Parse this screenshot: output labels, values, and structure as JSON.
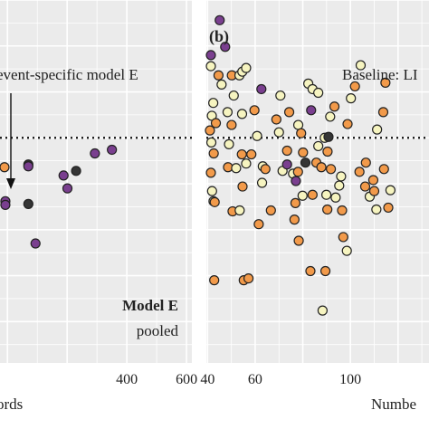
{
  "chart_data": [
    {
      "type": "scatter",
      "panel_label": "",
      "annotation": "event-specific model E",
      "model_label": "Model E",
      "pooled_label": "pooled",
      "xlabel": "ords",
      "xlim": [
        -25,
        618
      ],
      "x_ticks": [
        400,
        600
      ],
      "ylim": [
        -2.45,
        1.5
      ],
      "reference_line_y": 0,
      "grid": true,
      "colors": {
        "purple": "#7a3f8f",
        "dark": "#353535",
        "orange": "#f29a4a"
      },
      "points": [
        {
          "x": -10,
          "y": -0.32,
          "color": "orange"
        },
        {
          "x": -7,
          "y": -0.69,
          "color": "purple"
        },
        {
          "x": -7,
          "y": -0.73,
          "color": "purple"
        },
        {
          "x": 70,
          "y": -0.29,
          "color": "dark"
        },
        {
          "x": 70,
          "y": -0.31,
          "color": "purple"
        },
        {
          "x": 70,
          "y": -0.72,
          "color": "dark"
        },
        {
          "x": 94,
          "y": -1.15,
          "color": "purple"
        },
        {
          "x": 188,
          "y": -0.41,
          "color": "purple"
        },
        {
          "x": 201,
          "y": -0.55,
          "color": "purple"
        },
        {
          "x": 230,
          "y": -0.36,
          "color": "dark"
        },
        {
          "x": 293,
          "y": -0.17,
          "color": "purple"
        },
        {
          "x": 350,
          "y": -0.13,
          "color": "purple"
        }
      ]
    },
    {
      "type": "scatter",
      "panel_label": "(b)",
      "annotation": "Baseline: LI",
      "xlabel": "Numbe",
      "xlim": [
        39.5,
        133
      ],
      "x_ticks": [
        40,
        60,
        100
      ],
      "ylim": [
        -2.45,
        1.5
      ],
      "reference_line_y": 0,
      "grid": true,
      "colors": {
        "purple": "#7a3f8f",
        "dark": "#353535",
        "orange": "#f29a4a",
        "yellow": "#f6f4c0"
      },
      "points": [
        {
          "x": 41.4,
          "y": 0.9,
          "color": "purple"
        },
        {
          "x": 41.4,
          "y": 0.78,
          "color": "yellow"
        },
        {
          "x": 42.4,
          "y": 0.38,
          "color": "yellow"
        },
        {
          "x": 41.8,
          "y": 0.24,
          "color": "yellow"
        },
        {
          "x": 41,
          "y": 0.08,
          "color": "orange"
        },
        {
          "x": 41.6,
          "y": -0.05,
          "color": "yellow"
        },
        {
          "x": 42.6,
          "y": -0.17,
          "color": "orange"
        },
        {
          "x": 41.4,
          "y": -0.38,
          "color": "orange"
        },
        {
          "x": 41.9,
          "y": -0.58,
          "color": "yellow"
        },
        {
          "x": 42.5,
          "y": -0.69,
          "color": "yellow"
        },
        {
          "x": 43,
          "y": -0.7,
          "color": "orange"
        },
        {
          "x": 42.8,
          "y": -1.55,
          "color": "orange"
        },
        {
          "x": 43.5,
          "y": 0.16,
          "color": "orange"
        },
        {
          "x": 45.1,
          "y": 1.28,
          "color": "purple"
        },
        {
          "x": 45.9,
          "y": 0.58,
          "color": "yellow"
        },
        {
          "x": 47.4,
          "y": 0.99,
          "color": "purple"
        },
        {
          "x": 44.6,
          "y": 0.68,
          "color": "orange"
        },
        {
          "x": 48.6,
          "y": -0.32,
          "color": "orange"
        },
        {
          "x": 49,
          "y": -0.07,
          "color": "yellow"
        },
        {
          "x": 48.4,
          "y": 0.28,
          "color": "yellow"
        },
        {
          "x": 51,
          "y": 0.46,
          "color": "yellow"
        },
        {
          "x": 52,
          "y": -0.33,
          "color": "yellow"
        },
        {
          "x": 50.5,
          "y": -0.8,
          "color": "orange"
        },
        {
          "x": 50.1,
          "y": 0.14,
          "color": "orange"
        },
        {
          "x": 50.2,
          "y": 0.68,
          "color": "orange"
        },
        {
          "x": 53.4,
          "y": 0.68,
          "color": "yellow"
        },
        {
          "x": 54.6,
          "y": 0.72,
          "color": "yellow"
        },
        {
          "x": 56.2,
          "y": 0.76,
          "color": "yellow"
        },
        {
          "x": 54.5,
          "y": 0.26,
          "color": "yellow"
        },
        {
          "x": 54.4,
          "y": -0.18,
          "color": "orange"
        },
        {
          "x": 56.2,
          "y": -0.28,
          "color": "yellow"
        },
        {
          "x": 54.7,
          "y": -0.53,
          "color": "orange"
        },
        {
          "x": 53.5,
          "y": -0.79,
          "color": "yellow"
        },
        {
          "x": 55.2,
          "y": -1.55,
          "color": "orange"
        },
        {
          "x": 57.2,
          "y": -1.53,
          "color": "orange"
        },
        {
          "x": 58.4,
          "y": -0.18,
          "color": "orange"
        },
        {
          "x": 59.7,
          "y": 0.3,
          "color": "orange"
        },
        {
          "x": 60.8,
          "y": 0.02,
          "color": "yellow"
        },
        {
          "x": 62.6,
          "y": 0.53,
          "color": "purple"
        },
        {
          "x": 63.2,
          "y": -0.31,
          "color": "yellow"
        },
        {
          "x": 62.9,
          "y": -0.49,
          "color": "yellow"
        },
        {
          "x": 61.5,
          "y": -0.94,
          "color": "orange"
        },
        {
          "x": 64.3,
          "y": -0.34,
          "color": "orange"
        },
        {
          "x": 66.6,
          "y": -0.79,
          "color": "orange"
        },
        {
          "x": 68.9,
          "y": 0.2,
          "color": "orange"
        },
        {
          "x": 70,
          "y": 0.06,
          "color": "yellow"
        },
        {
          "x": 70.6,
          "y": 0.46,
          "color": "yellow"
        },
        {
          "x": 71.5,
          "y": -0.36,
          "color": "yellow"
        },
        {
          "x": 73.4,
          "y": -0.14,
          "color": "orange"
        },
        {
          "x": 74.3,
          "y": 0.28,
          "color": "orange"
        },
        {
          "x": 73.4,
          "y": -0.29,
          "color": "purple"
        },
        {
          "x": 75.9,
          "y": -0.39,
          "color": "yellow"
        },
        {
          "x": 76.5,
          "y": -0.89,
          "color": "orange"
        },
        {
          "x": 78.1,
          "y": 0.14,
          "color": "yellow"
        },
        {
          "x": 79.3,
          "y": 0.05,
          "color": "orange"
        },
        {
          "x": 80.1,
          "y": -0.16,
          "color": "orange"
        },
        {
          "x": 81.1,
          "y": -0.27,
          "color": "dark"
        },
        {
          "x": 78,
          "y": -0.37,
          "color": "orange"
        },
        {
          "x": 77.1,
          "y": -0.47,
          "color": "purple"
        },
        {
          "x": 76.9,
          "y": -0.71,
          "color": "orange"
        },
        {
          "x": 79.9,
          "y": -0.63,
          "color": "yellow"
        },
        {
          "x": 78.3,
          "y": -1.12,
          "color": "orange"
        },
        {
          "x": 82.3,
          "y": 0.59,
          "color": "yellow"
        },
        {
          "x": 84.1,
          "y": 0.53,
          "color": "yellow"
        },
        {
          "x": 86.5,
          "y": 0.49,
          "color": "yellow"
        },
        {
          "x": 83.5,
          "y": 0.3,
          "color": "purple"
        },
        {
          "x": 86.5,
          "y": -0.09,
          "color": "yellow"
        },
        {
          "x": 85.7,
          "y": -0.27,
          "color": "orange"
        },
        {
          "x": 87.8,
          "y": -0.32,
          "color": "orange"
        },
        {
          "x": 84.1,
          "y": -0.62,
          "color": "orange"
        },
        {
          "x": 83.2,
          "y": -1.45,
          "color": "orange"
        },
        {
          "x": 89.2,
          "y": 0.0,
          "color": "yellow"
        },
        {
          "x": 90.8,
          "y": 0.01,
          "color": "dark"
        },
        {
          "x": 90.4,
          "y": -0.15,
          "color": "orange"
        },
        {
          "x": 91.5,
          "y": 0.23,
          "color": "yellow"
        },
        {
          "x": 93.3,
          "y": 0.34,
          "color": "orange"
        },
        {
          "x": 91.8,
          "y": -0.34,
          "color": "orange"
        },
        {
          "x": 89.9,
          "y": -0.62,
          "color": "yellow"
        },
        {
          "x": 90.3,
          "y": -0.78,
          "color": "orange"
        },
        {
          "x": 89.5,
          "y": -1.45,
          "color": "orange"
        },
        {
          "x": 88.3,
          "y": -1.88,
          "color": "yellow"
        },
        {
          "x": 93.8,
          "y": -0.65,
          "color": "yellow"
        },
        {
          "x": 95.3,
          "y": -0.52,
          "color": "yellow"
        },
        {
          "x": 96.5,
          "y": -0.79,
          "color": "orange"
        },
        {
          "x": 96.1,
          "y": -0.42,
          "color": "yellow"
        },
        {
          "x": 97,
          "y": -1.08,
          "color": "orange"
        },
        {
          "x": 98.5,
          "y": -1.23,
          "color": "yellow"
        },
        {
          "x": 100.2,
          "y": 0.43,
          "color": "yellow"
        },
        {
          "x": 101.9,
          "y": 0.56,
          "color": "orange"
        },
        {
          "x": 98.8,
          "y": 0.15,
          "color": "orange"
        },
        {
          "x": 104.3,
          "y": 0.79,
          "color": "yellow"
        },
        {
          "x": 103.8,
          "y": -0.37,
          "color": "orange"
        },
        {
          "x": 106.2,
          "y": -0.53,
          "color": "orange"
        },
        {
          "x": 106.5,
          "y": -0.27,
          "color": "orange"
        },
        {
          "x": 108.1,
          "y": -0.64,
          "color": "yellow"
        },
        {
          "x": 109.6,
          "y": -0.46,
          "color": "orange"
        },
        {
          "x": 110,
          "y": -0.58,
          "color": "orange"
        },
        {
          "x": 111.2,
          "y": 0.09,
          "color": "yellow"
        },
        {
          "x": 113.8,
          "y": 0.28,
          "color": "orange"
        },
        {
          "x": 114.1,
          "y": -0.34,
          "color": "orange"
        },
        {
          "x": 115.9,
          "y": -0.76,
          "color": "orange"
        },
        {
          "x": 114.7,
          "y": 0.6,
          "color": "orange"
        },
        {
          "x": 110.9,
          "y": -0.78,
          "color": "yellow"
        },
        {
          "x": 116.8,
          "y": -0.57,
          "color": "yellow"
        }
      ]
    }
  ]
}
